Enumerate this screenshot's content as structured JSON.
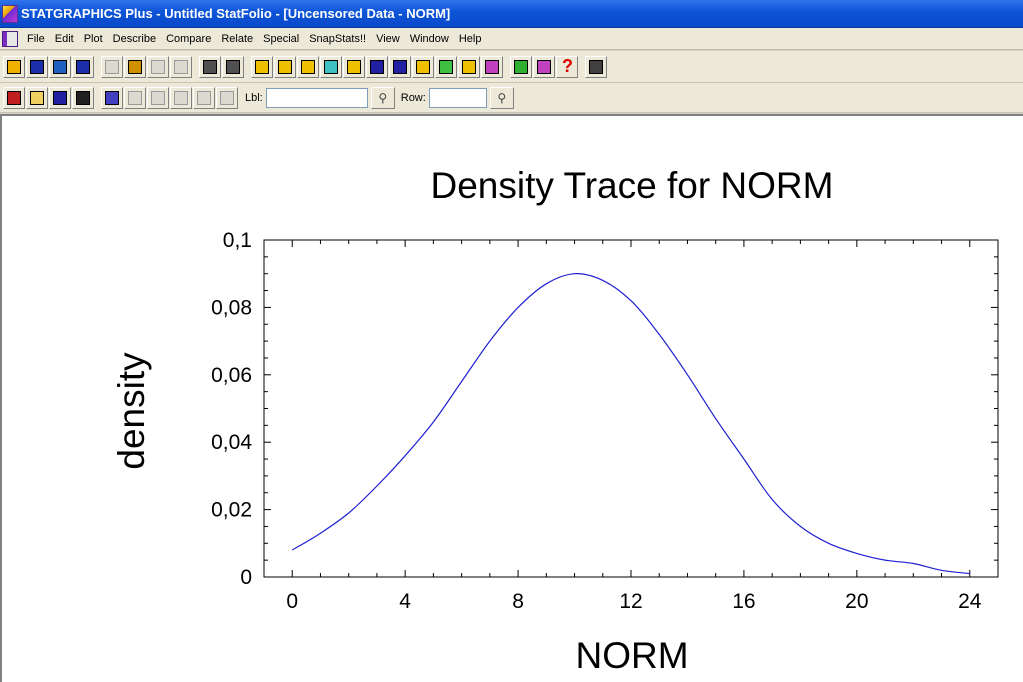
{
  "window": {
    "title": "STATGRAPHICS Plus - Untitled StatFolio - [Uncensored Data - NORM]"
  },
  "menu": {
    "items": [
      "File",
      "Edit",
      "Plot",
      "Describe",
      "Compare",
      "Relate",
      "Special",
      "SnapStats!!",
      "View",
      "Window",
      "Help"
    ]
  },
  "toolbar1": {
    "buttons": [
      {
        "icon": "open-folder-icon",
        "color": "#f0b000"
      },
      {
        "icon": "save-disk-icon",
        "color": "#1c2ea8"
      },
      {
        "icon": "spreadsheet-icon",
        "color": "#2060c0"
      },
      {
        "icon": "datasheet-icon",
        "color": "#1c2ea8"
      },
      {
        "icon": "cut-icon",
        "color": "#9a9a9a",
        "disabled": true
      },
      {
        "icon": "copy-icon",
        "color": "#d09000"
      },
      {
        "icon": "paste-icon",
        "color": "#9a9a9a",
        "disabled": true
      },
      {
        "icon": "undo-icon",
        "color": "#9a9a9a",
        "disabled": true
      },
      {
        "icon": "print-icon",
        "color": "#505050"
      },
      {
        "icon": "print-preview-icon",
        "color": "#505050"
      },
      {
        "icon": "scatter-plot-icon",
        "color": "#f0c000"
      },
      {
        "icon": "box-plot-icon",
        "color": "#f0c000"
      },
      {
        "icon": "bar-chart-icon",
        "color": "#f0c000"
      },
      {
        "icon": "xy-plot-icon",
        "color": "#40c0c0"
      },
      {
        "icon": "scatter-matrix-icon",
        "color": "#f0c000"
      },
      {
        "icon": "time-series-icon",
        "color": "#2020a0"
      },
      {
        "icon": "distribution-icon",
        "color": "#2020a0"
      },
      {
        "icon": "line-plot-icon",
        "color": "#f0c000"
      },
      {
        "icon": "target-icon",
        "color": "#40c040"
      },
      {
        "icon": "cluster-icon",
        "color": "#f0c000"
      },
      {
        "icon": "glm-icon",
        "color": "#c040c0"
      },
      {
        "icon": "statadvisor-icon",
        "color": "#30b030"
      },
      {
        "icon": "statwizard-icon",
        "color": "#c040c0"
      },
      {
        "icon": "help-icon",
        "color": "#e00000",
        "help": true
      },
      {
        "icon": "calculator-icon",
        "color": "#404040"
      }
    ]
  },
  "toolbar2": {
    "buttons": [
      {
        "icon": "analysis-window-icon",
        "color": "#c02020"
      },
      {
        "icon": "text-pane-icon",
        "color": "#f0d060"
      },
      {
        "icon": "graph-pane-icon",
        "color": "#2020a0"
      },
      {
        "icon": "maximize-pane-icon",
        "color": "#202020"
      },
      {
        "icon": "abc-label-icon",
        "color": "#4040c0"
      },
      {
        "icon": "move-points-icon",
        "color": "#9a9a9a",
        "disabled": true
      },
      {
        "icon": "zoom-points-icon",
        "color": "#9a9a9a",
        "disabled": true
      },
      {
        "icon": "exclude-points-icon",
        "color": "#9a9a9a",
        "disabled": true
      },
      {
        "icon": "identify-point-icon",
        "color": "#9a9a9a",
        "disabled": true
      },
      {
        "icon": "axis-scale-icon",
        "color": "#9a9a9a",
        "disabled": true
      }
    ],
    "label_lbl": "Lbl:",
    "lbl_value": "",
    "label_row": "Row:",
    "row_value": ""
  },
  "chart_data": {
    "type": "line",
    "title": "Density Trace for NORM",
    "xlabel": "NORM",
    "ylabel": "density",
    "xlim": [
      -1,
      25
    ],
    "ylim": [
      0,
      0.1
    ],
    "x_ticks": [
      0,
      4,
      8,
      12,
      16,
      20,
      24
    ],
    "x_tick_labels": [
      "0",
      "4",
      "8",
      "12",
      "16",
      "20",
      "24"
    ],
    "y_ticks": [
      0,
      0.02,
      0.04,
      0.06,
      0.08,
      0.1
    ],
    "y_tick_labels": [
      "0",
      "0,02",
      "0,04",
      "0,06",
      "0,08",
      "0,1"
    ],
    "grid": false,
    "line_color": "#2020d0",
    "series": [
      {
        "x": [
          0,
          1,
          2,
          3,
          4,
          5,
          6,
          7,
          8,
          9,
          10,
          11,
          12,
          13,
          14,
          15,
          16,
          17,
          18,
          19,
          20,
          21,
          22,
          23,
          24
        ],
        "y": [
          0.008,
          0.013,
          0.019,
          0.027,
          0.036,
          0.046,
          0.058,
          0.07,
          0.08,
          0.087,
          0.09,
          0.088,
          0.082,
          0.072,
          0.06,
          0.047,
          0.035,
          0.023,
          0.015,
          0.01,
          0.007,
          0.005,
          0.004,
          0.002,
          0.001
        ]
      }
    ]
  }
}
